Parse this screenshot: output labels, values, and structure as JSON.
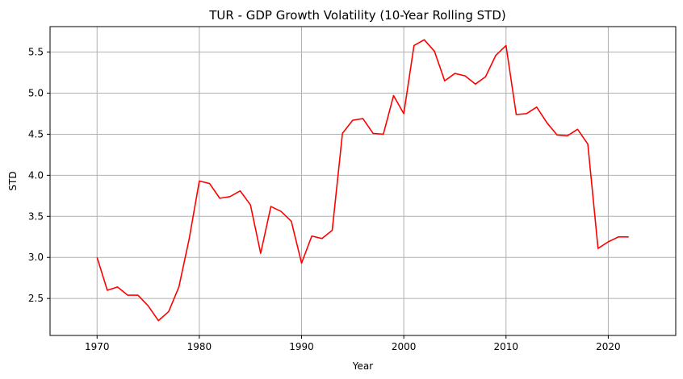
{
  "chart_data": {
    "type": "line",
    "title": "TUR - GDP Growth Volatility (10-Year Rolling STD)",
    "xlabel": "Year",
    "ylabel": "STD",
    "xlim": [
      1965.4,
      2026.6
    ],
    "ylim": [
      2.05,
      5.81
    ],
    "xticks": [
      1970,
      1980,
      1990,
      2000,
      2010,
      2020
    ],
    "yticks": [
      2.5,
      3.0,
      3.5,
      4.0,
      4.5,
      5.0,
      5.5
    ],
    "ytick_labels": [
      "2.5",
      "3.0",
      "3.5",
      "4.0",
      "4.5",
      "5.0",
      "5.5"
    ],
    "grid": true,
    "series_color": "#ff0000",
    "grid_color": "#b0b0b0",
    "series": [
      {
        "x": [
          1970,
          1971,
          1972,
          1973,
          1974,
          1975,
          1976,
          1977,
          1978,
          1979,
          1980,
          1981,
          1982,
          1983,
          1984,
          1985,
          1986,
          1987,
          1988,
          1989,
          1990,
          1991,
          1992,
          1993,
          1994,
          1995,
          1996,
          1997,
          1998,
          1999,
          2000,
          2001,
          2002,
          2003,
          2004,
          2005,
          2006,
          2007,
          2008,
          2009,
          2010,
          2011,
          2012,
          2013,
          2014,
          2015,
          2016,
          2017,
          2018,
          2019,
          2020,
          2021,
          2022
        ],
        "values": [
          3.0,
          2.6,
          2.64,
          2.54,
          2.54,
          2.41,
          2.23,
          2.34,
          2.64,
          3.22,
          3.93,
          3.9,
          3.72,
          3.74,
          3.81,
          3.64,
          3.05,
          3.62,
          3.56,
          3.44,
          2.93,
          3.26,
          3.23,
          3.33,
          4.51,
          4.67,
          4.69,
          4.51,
          4.5,
          4.97,
          4.75,
          5.58,
          5.65,
          5.51,
          5.15,
          5.24,
          5.21,
          5.11,
          5.2,
          5.46,
          5.58,
          4.74,
          4.75,
          4.83,
          4.64,
          4.49,
          4.48,
          4.56,
          4.38,
          3.11,
          3.19,
          3.25,
          3.25
        ]
      }
    ]
  }
}
